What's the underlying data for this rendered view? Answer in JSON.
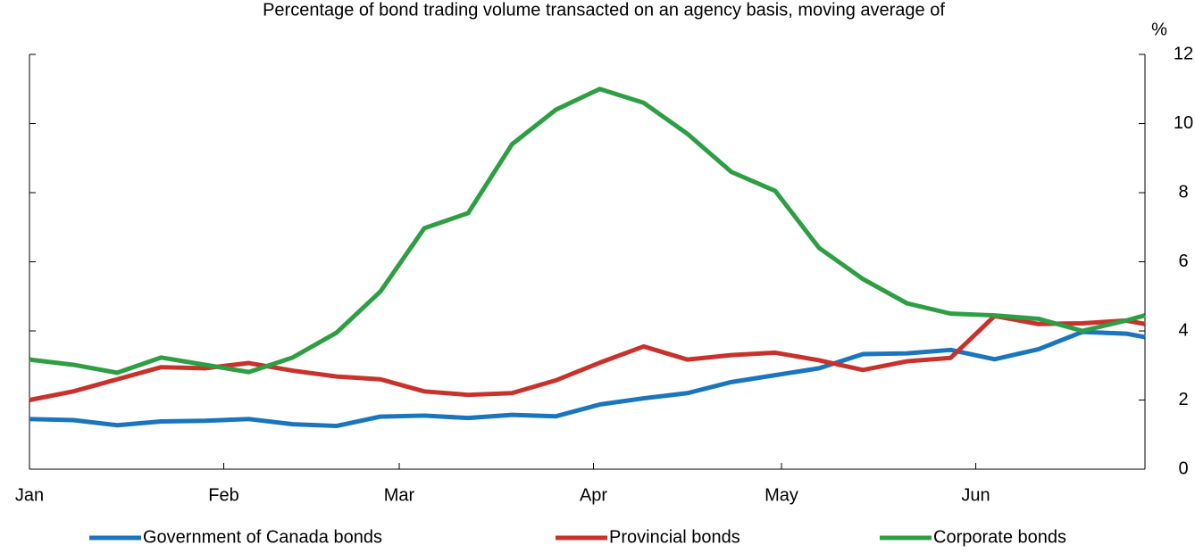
{
  "chart_data": {
    "type": "line",
    "title": "Percentage of bond trading volume transacted on an agency basis, moving average of",
    "y_label": "%",
    "x": [
      0,
      7,
      14,
      21,
      28,
      35,
      42,
      49,
      56,
      63,
      70,
      77,
      84,
      91,
      98,
      105,
      112,
      119,
      126,
      133,
      140,
      147,
      154,
      161,
      168,
      175,
      178
    ],
    "xlim": [
      0,
      178
    ],
    "xticks": [
      {
        "value": 0,
        "label": "Jan"
      },
      {
        "value": 31,
        "label": "Feb"
      },
      {
        "value": 59,
        "label": "Mar"
      },
      {
        "value": 90,
        "label": "Apr"
      },
      {
        "value": 120,
        "label": "May"
      },
      {
        "value": 151,
        "label": "Jun"
      }
    ],
    "ylim": [
      0,
      12
    ],
    "yticks": [
      0,
      2,
      4,
      6,
      8,
      10,
      12
    ],
    "legend": "bottom",
    "series": [
      {
        "name": "Government of Canada bonds",
        "color": "#1a75bc",
        "values": [
          1.45,
          1.42,
          1.27,
          1.38,
          1.4,
          1.45,
          1.3,
          1.25,
          1.52,
          1.55,
          1.48,
          1.57,
          1.53,
          1.87,
          2.05,
          2.2,
          2.52,
          2.72,
          2.92,
          3.33,
          3.35,
          3.45,
          3.18,
          3.47,
          3.97,
          3.92,
          3.82
        ]
      },
      {
        "name": "Provincial bonds",
        "color": "#c8322c",
        "values": [
          2.0,
          2.25,
          2.6,
          2.95,
          2.92,
          3.07,
          2.85,
          2.68,
          2.6,
          2.25,
          2.15,
          2.2,
          2.57,
          3.08,
          3.55,
          3.17,
          3.3,
          3.37,
          3.15,
          2.87,
          3.12,
          3.22,
          4.43,
          4.2,
          4.22,
          4.3,
          4.2
        ]
      },
      {
        "name": "Corporate bonds",
        "color": "#2e9e44",
        "values": [
          3.17,
          3.02,
          2.79,
          3.23,
          3.02,
          2.81,
          3.23,
          3.95,
          5.14,
          6.97,
          7.41,
          9.4,
          10.4,
          11.0,
          10.6,
          9.7,
          8.6,
          8.05,
          6.4,
          5.5,
          4.8,
          4.5,
          4.45,
          4.35,
          4.0,
          4.3,
          4.45
        ]
      }
    ]
  }
}
